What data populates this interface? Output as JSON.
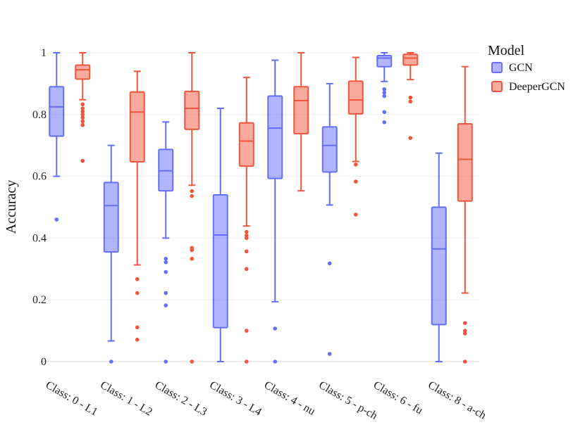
{
  "chart_data": {
    "type": "box",
    "ylabel": "Accuracy",
    "xlabel": "",
    "ylim": [
      0,
      1
    ],
    "yticks": [
      0,
      0.2,
      0.4,
      0.6,
      0.8,
      1
    ],
    "ytick_labels": [
      "0",
      "0.2",
      "0.4",
      "0.6",
      "0.8",
      "1"
    ],
    "grid": true,
    "legend_placement": "top-right",
    "legend_title": "Model",
    "categories": [
      "Class: 0 - L1",
      "Class: 1 - L2",
      "Class: 2 - L3",
      "Class: 3 - L4",
      "Class: 4 - nu",
      "Class: 5 - p-ch",
      "Class: 6 - fu",
      "Class: 8 - a-ch"
    ],
    "series": [
      {
        "name": "GCN",
        "stroke": "#636efa",
        "fill": "rgba(99,110,250,0.5)",
        "boxes": [
          {
            "q1": 0.73,
            "median": 0.825,
            "q3": 0.89,
            "whisker_low": 0.6,
            "whisker_high": 1.0,
            "outliers": [
              0.46
            ]
          },
          {
            "q1": 0.355,
            "median": 0.505,
            "q3": 0.58,
            "whisker_low": 0.067,
            "whisker_high": 0.7,
            "outliers": [
              0.0
            ]
          },
          {
            "q1": 0.553,
            "median": 0.618,
            "q3": 0.687,
            "whisker_low": 0.4,
            "whisker_high": 0.776,
            "outliers": [
              0.333,
              0.322,
              0.29,
              0.222,
              0.182,
              0.0
            ]
          },
          {
            "q1": 0.11,
            "median": 0.41,
            "q3": 0.54,
            "whisker_low": 0.0,
            "whisker_high": 0.82,
            "outliers": []
          },
          {
            "q1": 0.593,
            "median": 0.756,
            "q3": 0.86,
            "whisker_low": 0.194,
            "whisker_high": 0.976,
            "outliers": [
              0.107,
              0.0
            ]
          },
          {
            "q1": 0.614,
            "median": 0.7,
            "q3": 0.76,
            "whisker_low": 0.507,
            "whisker_high": 0.9,
            "outliers": [
              0.318,
              0.025
            ]
          },
          {
            "q1": 0.955,
            "median": 0.983,
            "q3": 0.991,
            "whisker_low": 0.907,
            "whisker_high": 1.0,
            "outliers": [
              0.882,
              0.871,
              0.86,
              0.808,
              0.775
            ]
          },
          {
            "q1": 0.12,
            "median": 0.365,
            "q3": 0.5,
            "whisker_low": 0.0,
            "whisker_high": 0.675,
            "outliers": []
          }
        ]
      },
      {
        "name": "DeeperGCN",
        "stroke": "#ef553b",
        "fill": "rgba(239,85,59,0.5)",
        "boxes": [
          {
            "q1": 0.915,
            "median": 0.945,
            "q3": 0.96,
            "whisker_low": 0.848,
            "whisker_high": 1.0,
            "outliers": [
              0.833,
              0.82,
              0.81,
              0.8,
              0.79,
              0.778,
              0.766,
              0.65
            ]
          },
          {
            "q1": 0.647,
            "median": 0.808,
            "q3": 0.873,
            "whisker_low": 0.313,
            "whisker_high": 0.94,
            "outliers": [
              0.267,
              0.222,
              0.111,
              0.071
            ]
          },
          {
            "q1": 0.752,
            "median": 0.82,
            "q3": 0.875,
            "whisker_low": 0.571,
            "whisker_high": 1.0,
            "outliers": [
              0.552,
              0.536,
              0.368,
              0.361,
              0.333,
              0.0
            ]
          },
          {
            "q1": 0.633,
            "median": 0.714,
            "q3": 0.773,
            "whisker_low": 0.439,
            "whisker_high": 0.92,
            "outliers": [
              0.42,
              0.408,
              0.4,
              0.357,
              0.3,
              0.1,
              0.0
            ]
          },
          {
            "q1": 0.738,
            "median": 0.845,
            "q3": 0.89,
            "whisker_low": 0.553,
            "whisker_high": 1.0,
            "outliers": []
          },
          {
            "q1": 0.802,
            "median": 0.847,
            "q3": 0.908,
            "whisker_low": 0.648,
            "whisker_high": 0.985,
            "outliers": [
              0.638,
              0.583,
              0.476
            ]
          },
          {
            "q1": 0.96,
            "median": 0.983,
            "q3": 0.995,
            "whisker_low": 0.913,
            "whisker_high": 1.0,
            "outliers": [
              0.855,
              0.842,
              0.724
            ]
          },
          {
            "q1": 0.52,
            "median": 0.655,
            "q3": 0.77,
            "whisker_low": 0.222,
            "whisker_high": 0.955,
            "outliers": [
              0.125,
              0.1,
              0.091,
              0.0
            ]
          }
        ]
      }
    ]
  }
}
